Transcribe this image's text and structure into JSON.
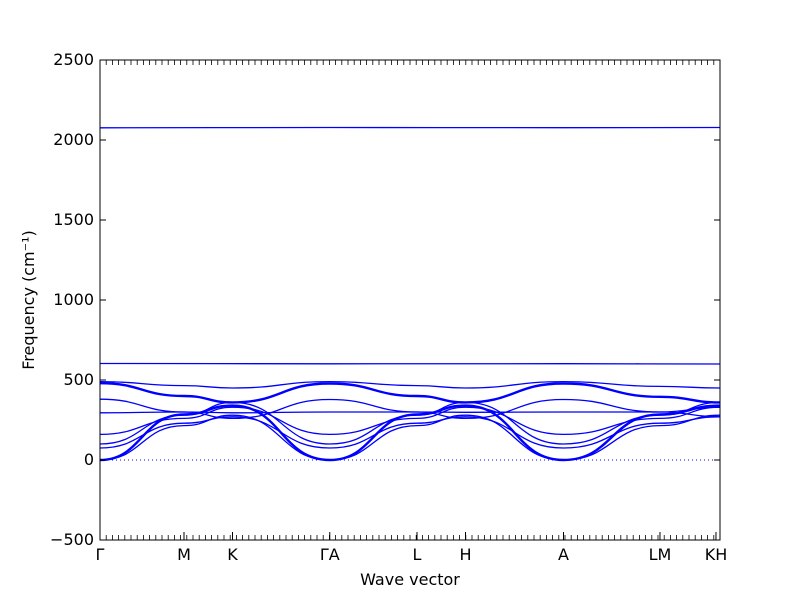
{
  "chart_data": {
    "type": "line",
    "title": "",
    "xlabel": "Wave vector",
    "ylabel": "Frequency ($cm^{-1}$)",
    "ylabel_display": "Frequency (cm⁻¹)",
    "ylim": [
      -500,
      2500
    ],
    "yticks": [
      -500,
      0,
      500,
      1000,
      1500,
      2000,
      2500
    ],
    "xlim": [
      0,
      1
    ],
    "high_symmetry_points": [
      {
        "label": "Γ",
        "x": 0.0
      },
      {
        "label": "M",
        "x": 0.1355
      },
      {
        "label": "K",
        "x": 0.2137
      },
      {
        "label": "ΓA",
        "x": 0.3706
      },
      {
        "label": "L",
        "x": 0.5113
      },
      {
        "label": "H",
        "x": 0.5895
      },
      {
        "label": "A",
        "x": 0.7476
      },
      {
        "label": "LM",
        "x": 0.9032
      },
      {
        "label": "KH",
        "x": 0.9935
      }
    ],
    "zero_line": true,
    "line_color": "#0000ff",
    "series": [
      {
        "values": [
          {
            "x": 0.0,
            "y": 2076
          },
          {
            "x": 0.3706,
            "y": 2078
          },
          {
            "x": 0.7476,
            "y": 2077
          },
          {
            "x": 1.0,
            "y": 2078
          }
        ]
      },
      {
        "values": [
          {
            "x": 0.0,
            "y": 603
          },
          {
            "x": 0.3706,
            "y": 601
          },
          {
            "x": 0.7476,
            "y": 602
          },
          {
            "x": 1.0,
            "y": 600
          }
        ]
      },
      {
        "values": [
          {
            "x": 0.0,
            "y": 490
          },
          {
            "x": 0.1355,
            "y": 465
          },
          {
            "x": 0.2137,
            "y": 450
          },
          {
            "x": 0.3706,
            "y": 490
          },
          {
            "x": 0.5113,
            "y": 465
          },
          {
            "x": 0.5895,
            "y": 450
          },
          {
            "x": 0.7476,
            "y": 490
          },
          {
            "x": 0.9032,
            "y": 460
          },
          {
            "x": 1.0,
            "y": 450
          }
        ]
      },
      {
        "values": [
          {
            "x": 0.0,
            "y": 480
          },
          {
            "x": 0.1355,
            "y": 400
          },
          {
            "x": 0.2137,
            "y": 360
          },
          {
            "x": 0.3706,
            "y": 478
          },
          {
            "x": 0.5113,
            "y": 400
          },
          {
            "x": 0.5895,
            "y": 360
          },
          {
            "x": 0.7476,
            "y": 478
          },
          {
            "x": 0.9032,
            "y": 395
          },
          {
            "x": 1.0,
            "y": 360
          }
        ]
      },
      {
        "values": [
          {
            "x": 0.0,
            "y": 380
          },
          {
            "x": 0.1355,
            "y": 300
          },
          {
            "x": 0.2137,
            "y": 260
          },
          {
            "x": 0.3706,
            "y": 378
          },
          {
            "x": 0.5113,
            "y": 300
          },
          {
            "x": 0.5895,
            "y": 260
          },
          {
            "x": 0.7476,
            "y": 378
          },
          {
            "x": 0.9032,
            "y": 300
          },
          {
            "x": 1.0,
            "y": 270
          }
        ]
      },
      {
        "values": [
          {
            "x": 0.0,
            "y": 295
          },
          {
            "x": 0.1355,
            "y": 300
          },
          {
            "x": 0.2137,
            "y": 295
          },
          {
            "x": 0.3706,
            "y": 300
          },
          {
            "x": 0.5113,
            "y": 300
          },
          {
            "x": 0.5895,
            "y": 298
          },
          {
            "x": 0.7476,
            "y": 300
          },
          {
            "x": 0.9032,
            "y": 300
          },
          {
            "x": 1.0,
            "y": 330
          }
        ]
      },
      {
        "values": [
          {
            "x": 0.0,
            "y": 160
          },
          {
            "x": 0.1355,
            "y": 260
          },
          {
            "x": 0.2137,
            "y": 330
          },
          {
            "x": 0.3706,
            "y": 160
          },
          {
            "x": 0.5113,
            "y": 260
          },
          {
            "x": 0.5895,
            "y": 330
          },
          {
            "x": 0.7476,
            "y": 160
          },
          {
            "x": 0.9032,
            "y": 260
          },
          {
            "x": 1.0,
            "y": 330
          }
        ]
      },
      {
        "values": [
          {
            "x": 0.0,
            "y": 100
          },
          {
            "x": 0.1355,
            "y": 280
          },
          {
            "x": 0.2137,
            "y": 360
          },
          {
            "x": 0.3706,
            "y": 100
          },
          {
            "x": 0.5113,
            "y": 280
          },
          {
            "x": 0.5895,
            "y": 360
          },
          {
            "x": 0.7476,
            "y": 100
          },
          {
            "x": 0.9032,
            "y": 280
          },
          {
            "x": 1.0,
            "y": 360
          }
        ]
      },
      {
        "values": [
          {
            "x": 0.0,
            "y": 75
          },
          {
            "x": 0.1355,
            "y": 230
          },
          {
            "x": 0.2137,
            "y": 270
          },
          {
            "x": 0.3706,
            "y": 75
          },
          {
            "x": 0.5113,
            "y": 230
          },
          {
            "x": 0.5895,
            "y": 270
          },
          {
            "x": 0.7476,
            "y": 75
          },
          {
            "x": 0.9032,
            "y": 230
          },
          {
            "x": 1.0,
            "y": 270
          }
        ]
      },
      {
        "values": [
          {
            "x": 0.0,
            "y": 0
          },
          {
            "x": 0.1355,
            "y": 285
          },
          {
            "x": 0.2137,
            "y": 340
          },
          {
            "x": 0.3706,
            "y": 0
          },
          {
            "x": 0.5113,
            "y": 285
          },
          {
            "x": 0.5895,
            "y": 340
          },
          {
            "x": 0.7476,
            "y": 0
          },
          {
            "x": 0.9032,
            "y": 285
          },
          {
            "x": 1.0,
            "y": 340
          }
        ]
      },
      {
        "values": [
          {
            "x": 0.0,
            "y": 0
          },
          {
            "x": 0.1355,
            "y": 215
          },
          {
            "x": 0.2137,
            "y": 280
          },
          {
            "x": 0.3706,
            "y": 0
          },
          {
            "x": 0.5113,
            "y": 215
          },
          {
            "x": 0.5895,
            "y": 280
          },
          {
            "x": 0.7476,
            "y": 0
          },
          {
            "x": 0.9032,
            "y": 215
          },
          {
            "x": 1.0,
            "y": 280
          }
        ]
      }
    ]
  }
}
